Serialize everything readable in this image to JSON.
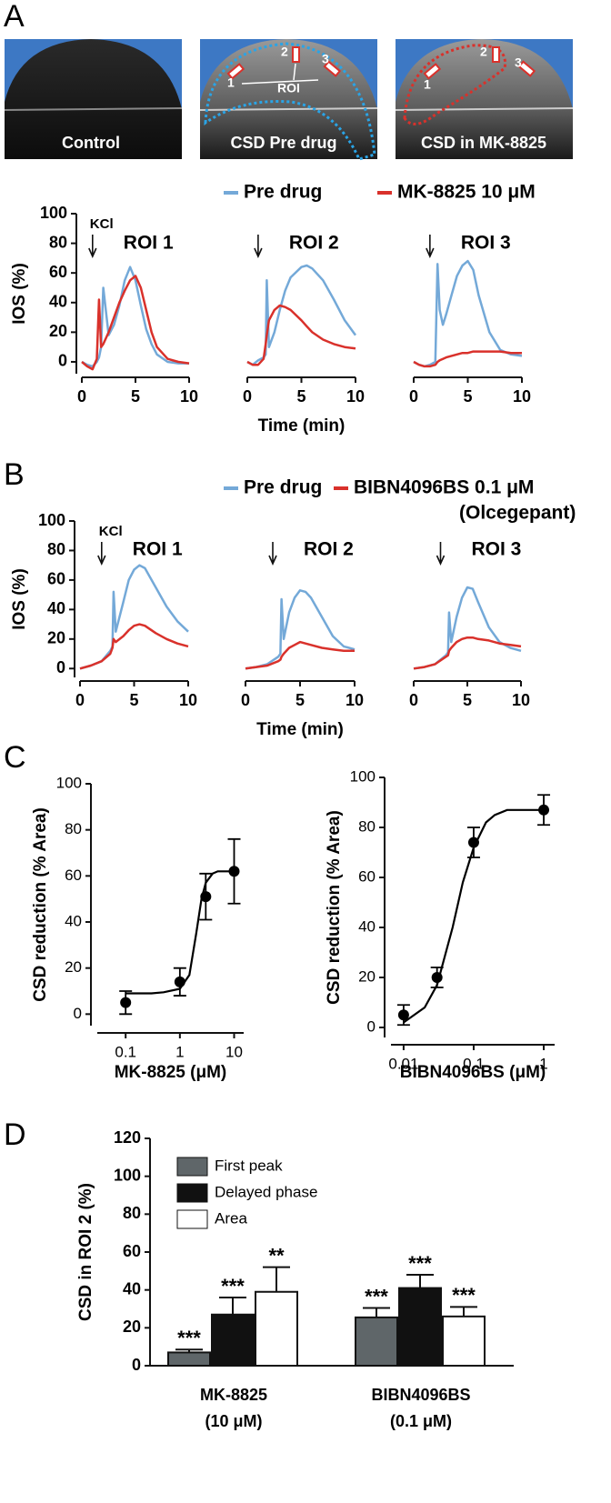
{
  "panel_labels": [
    "A",
    "B",
    "C",
    "D"
  ],
  "images": [
    {
      "caption": "Control"
    },
    {
      "caption": "CSD Pre drug",
      "roi_numbers": [
        "1",
        "2",
        "3"
      ],
      "roi_label": "ROI"
    },
    {
      "caption": "CSD in MK-8825",
      "roi_numbers": [
        "1",
        "2",
        "3"
      ]
    }
  ],
  "chart_data": [
    {
      "type": "line",
      "ylabel": "IOS (%)",
      "xlabel": "Time (min)",
      "ylim": [
        -8,
        100
      ],
      "yticks": [
        0,
        20,
        40,
        60,
        80,
        100
      ],
      "xlim": [
        0,
        10
      ],
      "xticks": [
        0,
        5,
        10
      ],
      "legend": [
        {
          "name": "Pre drug",
          "color": "#74a9d8"
        },
        {
          "name": "MK-8825 10 μM",
          "color": "#d9312b"
        }
      ],
      "subplots": [
        {
          "title": "ROI 1",
          "annotation": "KCl",
          "arrow_x": 1,
          "x": [
            0,
            0.5,
            1,
            1.4,
            1.6,
            1.8,
            2,
            2.5,
            3,
            3.5,
            4,
            4.5,
            5,
            5.5,
            6,
            6.5,
            7,
            8,
            9,
            10
          ],
          "series": [
            {
              "values": [
                0,
                -2,
                -3,
                0,
                3,
                10,
                50,
                18,
                25,
                38,
                55,
                64,
                55,
                38,
                22,
                12,
                5,
                0,
                -1,
                -1
              ]
            },
            {
              "values": [
                0,
                -3,
                -5,
                2,
                42,
                10,
                12,
                20,
                30,
                40,
                48,
                55,
                58,
                50,
                35,
                20,
                10,
                2,
                0,
                -1
              ]
            }
          ]
        },
        {
          "title": "ROI 2",
          "arrow_x": 1,
          "x": [
            0,
            0.5,
            1,
            1.5,
            1.7,
            1.8,
            2,
            2.5,
            3,
            3.5,
            4,
            5,
            5.5,
            6,
            7,
            8,
            9,
            10
          ],
          "series": [
            {
              "values": [
                0,
                -2,
                1,
                3,
                5,
                55,
                10,
                20,
                35,
                48,
                57,
                64,
                65,
                63,
                55,
                42,
                28,
                18
              ]
            },
            {
              "values": [
                0,
                -2,
                -2,
                2,
                12,
                18,
                28,
                35,
                38,
                37,
                35,
                28,
                24,
                20,
                15,
                12,
                10,
                9
              ]
            }
          ]
        },
        {
          "title": "ROI 3",
          "arrow_x": 1.5,
          "x": [
            0,
            0.5,
            1,
            1.5,
            2,
            2.2,
            2.4,
            2.7,
            3,
            3.5,
            4,
            4.5,
            5,
            5.5,
            6,
            7,
            8,
            9,
            10
          ],
          "series": [
            {
              "values": [
                0,
                -2,
                -3,
                -2,
                0,
                66,
                35,
                25,
                32,
                45,
                58,
                65,
                68,
                62,
                45,
                20,
                8,
                5,
                4
              ]
            },
            {
              "values": [
                0,
                -2,
                -3,
                -3,
                -2,
                0,
                1,
                2,
                3,
                4,
                5,
                6,
                6,
                7,
                7,
                7,
                7,
                6,
                6
              ]
            }
          ]
        }
      ]
    },
    {
      "type": "line",
      "ylabel": "IOS (%)",
      "xlabel": "Time (min)",
      "ylim": [
        -6,
        100
      ],
      "yticks": [
        0,
        20,
        40,
        60,
        80,
        100
      ],
      "xlim": [
        0,
        10
      ],
      "xticks": [
        0,
        5,
        10
      ],
      "legend": [
        {
          "name": "Pre drug",
          "color": "#74a9d8"
        },
        {
          "name": "BIBN4096BS 0.1 μM",
          "note": "(Olcegepant)",
          "color": "#d9312b"
        }
      ],
      "subplots": [
        {
          "title": "ROI 1",
          "annotation": "KCl",
          "arrow_x": 2,
          "x": [
            0,
            1,
            2,
            2.8,
            3,
            3.1,
            3.3,
            4,
            4.5,
            5,
            5.5,
            6,
            7,
            8,
            9,
            10
          ],
          "series": [
            {
              "values": [
                0,
                2,
                5,
                12,
                15,
                52,
                25,
                45,
                60,
                67,
                70,
                68,
                55,
                42,
                32,
                25
              ]
            },
            {
              "values": [
                0,
                2,
                5,
                10,
                14,
                20,
                18,
                22,
                26,
                29,
                30,
                29,
                24,
                20,
                17,
                15
              ]
            }
          ]
        },
        {
          "title": "ROI 2",
          "arrow_x": 2.5,
          "x": [
            0,
            1,
            2,
            3,
            3.2,
            3.3,
            3.5,
            4,
            4.5,
            5,
            5.5,
            6,
            7,
            8,
            9,
            10
          ],
          "series": [
            {
              "values": [
                0,
                1,
                3,
                8,
                10,
                47,
                20,
                38,
                48,
                53,
                52,
                48,
                35,
                22,
                15,
                13
              ]
            },
            {
              "values": [
                0,
                1,
                2,
                5,
                6,
                8,
                10,
                14,
                16,
                18,
                17,
                16,
                14,
                13,
                12,
                12
              ]
            }
          ]
        },
        {
          "title": "ROI 3",
          "arrow_x": 2.5,
          "x": [
            0,
            1,
            2,
            3,
            3.2,
            3.3,
            3.5,
            4,
            4.5,
            5,
            5.5,
            6,
            7,
            8,
            9,
            10
          ],
          "series": [
            {
              "values": [
                0,
                1,
                3,
                9,
                11,
                38,
                18,
                35,
                48,
                55,
                54,
                45,
                28,
                18,
                14,
                12
              ]
            },
            {
              "values": [
                0,
                1,
                3,
                8,
                9,
                12,
                14,
                18,
                20,
                21,
                21,
                20,
                19,
                17,
                16,
                15
              ]
            }
          ]
        }
      ]
    },
    {
      "type": "scatter",
      "xscale": "log",
      "ylabel": "CSD reduction (% Area)",
      "xlabel": "MK-8825 (μM)",
      "color": "#000000",
      "xlim": [
        0.03,
        15
      ],
      "xticks": [
        0.1,
        1,
        10
      ],
      "ylim": [
        -5,
        100
      ],
      "yticks": [
        0,
        20,
        40,
        60,
        80,
        100
      ],
      "x": [
        0.1,
        1,
        3,
        10
      ],
      "values": [
        5,
        14,
        51,
        62
      ],
      "errors": [
        5,
        6,
        10,
        14
      ],
      "fit": {
        "x": [
          0.1,
          0.3,
          0.5,
          1,
          1.5,
          2,
          2.5,
          3,
          4,
          5,
          7,
          10
        ],
        "values": [
          9,
          9,
          9.5,
          11,
          17,
          35,
          50,
          57,
          61,
          62,
          62,
          62
        ]
      }
    },
    {
      "type": "scatter",
      "xscale": "log",
      "ylabel": "CSD reduction (% Area)",
      "xlabel": "BIBN4096BS (μM)",
      "color": "#000000",
      "xlim": [
        0.0066,
        1.43
      ],
      "xticks": [
        0.01,
        0.1,
        1
      ],
      "ylim": [
        -4,
        100
      ],
      "yticks": [
        0,
        20,
        40,
        60,
        80,
        100
      ],
      "x": [
        0.01,
        0.03,
        0.1,
        1
      ],
      "values": [
        5,
        20,
        74,
        87
      ],
      "errors": [
        4,
        4,
        6,
        6
      ],
      "fit": {
        "x": [
          0.01,
          0.02,
          0.03,
          0.05,
          0.07,
          0.1,
          0.15,
          0.2,
          0.3,
          0.5,
          1
        ],
        "values": [
          2,
          8,
          17,
          40,
          58,
          72,
          82,
          85,
          87,
          87,
          87
        ]
      }
    },
    {
      "type": "bar",
      "ylabel": "CSD in ROI 2 (%)",
      "ylim": [
        0,
        120
      ],
      "yticks": [
        0,
        20,
        40,
        60,
        80,
        100,
        120
      ],
      "categories": [
        "MK-8825",
        "BIBN4096BS"
      ],
      "category_notes": [
        "(10 μM)",
        "(0.1 μM)"
      ],
      "series": [
        {
          "name": "First peak",
          "color": "#5f6669",
          "values": [
            7,
            25.5
          ],
          "errors": [
            1.5,
            5
          ],
          "significance": [
            "***",
            "***"
          ]
        },
        {
          "name": "Delayed phase",
          "color": "#111111",
          "values": [
            27,
            41
          ],
          "errors": [
            9,
            7
          ],
          "significance": [
            "***",
            "***"
          ]
        },
        {
          "name": "Area",
          "color": "#ffffff",
          "values": [
            39,
            26
          ],
          "errors": [
            13,
            5
          ],
          "significance": [
            "**",
            "***"
          ]
        }
      ]
    }
  ]
}
